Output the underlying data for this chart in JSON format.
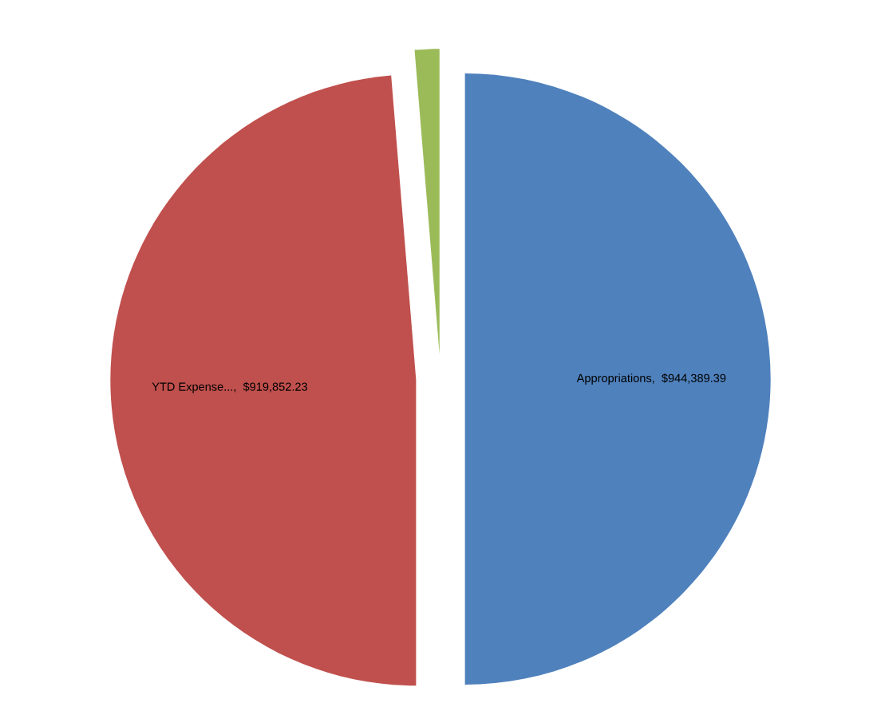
{
  "chart_data": {
    "type": "pie",
    "categories": [
      "Appropriations",
      "YTD Expense...",
      null
    ],
    "values": [
      944389.39,
      919852.23,
      24537
    ],
    "value_labels": [
      "$944,389.39",
      "$919,852.23",
      null
    ],
    "colors": [
      "#4f81bd",
      "#c0504d",
      "#9bbb59"
    ]
  }
}
